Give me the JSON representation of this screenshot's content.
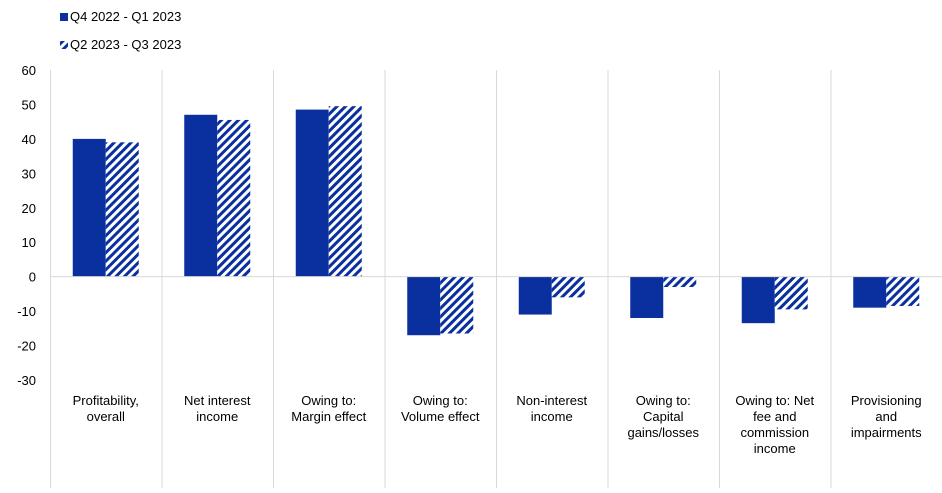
{
  "chart_data": {
    "type": "bar",
    "title": "",
    "xlabel": "",
    "ylabel": "",
    "ylim": [
      -30,
      60
    ],
    "yticks": [
      60,
      50,
      40,
      30,
      20,
      10,
      0,
      -10,
      -20,
      -30
    ],
    "legend_position": "top-left",
    "grid": false,
    "categories": [
      [
        "Profitability,",
        "overall"
      ],
      [
        "Net interest",
        "income"
      ],
      [
        "Owing to:",
        "Margin effect"
      ],
      [
        "Owing to:",
        "Volume effect"
      ],
      [
        "Non-interest",
        "income"
      ],
      [
        "Owing to:",
        "Capital",
        "gains/losses"
      ],
      [
        "Owing to: Net",
        "fee and",
        "commission",
        "income"
      ],
      [
        "Provisioning",
        "and",
        "impairments"
      ]
    ],
    "series": [
      {
        "name": "Q4 2022 - Q1 2023",
        "color": "#0a2f9e",
        "pattern": "solid",
        "values": [
          40,
          47,
          48.5,
          -17,
          -11,
          -12,
          -13.5,
          -9
        ]
      },
      {
        "name": "Q2 2023 - Q3 2023",
        "color": "#0a2f9e",
        "pattern": "diagonal-stripes",
        "values": [
          39,
          45.5,
          49.5,
          -16.5,
          -6,
          -3,
          -9.5,
          -8.5
        ]
      }
    ]
  }
}
